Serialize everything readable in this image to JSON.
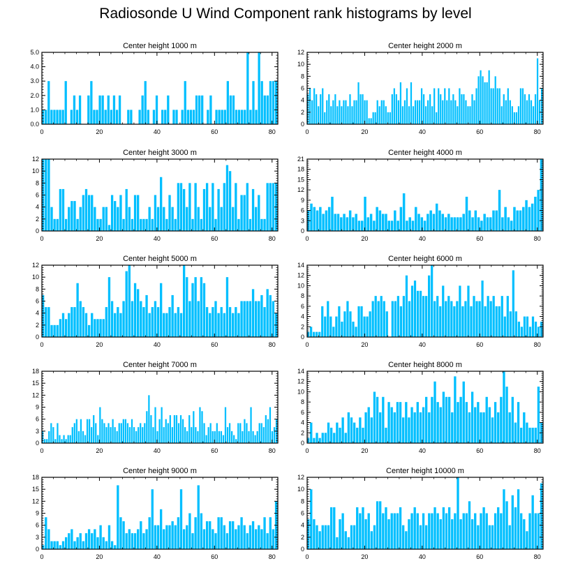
{
  "title": "Radiosonde U Wind Component rank histograms by level",
  "bar_color": "#00bfff",
  "chart_data": [
    {
      "type": "bar",
      "title": "Center height 1000 m",
      "xlim": [
        0,
        82
      ],
      "ylim": [
        0,
        5
      ],
      "xticks": [
        "0",
        "20",
        "40",
        "60",
        "80"
      ],
      "xtick_values": [
        0,
        20,
        40,
        60,
        80
      ],
      "yticks": [
        "0.0",
        "1.0",
        "2.0",
        "3.0",
        "4.0",
        "5.0"
      ],
      "ytick_values": [
        0,
        1,
        2,
        3,
        4,
        5
      ],
      "values": [
        1,
        1,
        3,
        1,
        1,
        1,
        1,
        1,
        3,
        0,
        1,
        2,
        1,
        2,
        0,
        0,
        2,
        3,
        1,
        1,
        2,
        2,
        1,
        2,
        1,
        2,
        1,
        2,
        0,
        0,
        1,
        1,
        0,
        0,
        1,
        2,
        3,
        1,
        0,
        1,
        2,
        0,
        1,
        1,
        2,
        0,
        1,
        1,
        0,
        1,
        3,
        1,
        1,
        1,
        2,
        2,
        2,
        0,
        1,
        2,
        0,
        1,
        1,
        1,
        1,
        3,
        2,
        2,
        1,
        1,
        1,
        1,
        5,
        1,
        3,
        1,
        5,
        3,
        2,
        2,
        3,
        3,
        3
      ]
    },
    {
      "type": "bar",
      "title": "Center height 2000 m",
      "xlim": [
        0,
        82
      ],
      "ylim": [
        0,
        12
      ],
      "xticks": [
        "0",
        "20",
        "40",
        "60",
        "80"
      ],
      "xtick_values": [
        0,
        20,
        40,
        60,
        80
      ],
      "yticks": [
        "0",
        "2",
        "4",
        "6",
        "8",
        "10",
        "12"
      ],
      "ytick_values": [
        0,
        2,
        4,
        6,
        8,
        10,
        12
      ],
      "values": [
        5,
        6,
        4,
        6,
        5,
        3,
        5,
        6,
        2,
        4,
        5,
        3,
        4,
        5,
        3,
        4,
        3,
        4,
        4,
        3,
        5,
        3,
        4,
        4,
        7,
        5,
        5,
        4,
        4,
        1,
        1,
        2,
        2,
        4,
        3,
        4,
        4,
        3,
        2,
        2,
        5,
        6,
        5,
        4,
        7,
        3,
        4,
        6,
        3,
        7,
        3,
        4,
        4,
        4,
        6,
        5,
        3,
        4,
        5,
        3,
        6,
        2,
        6,
        5,
        4,
        6,
        4,
        6,
        4,
        5,
        4,
        3,
        6,
        5,
        5,
        4,
        3,
        3,
        5,
        4,
        6,
        8,
        9,
        8,
        7,
        7,
        9,
        6,
        6,
        8,
        6,
        6,
        3,
        5,
        4,
        6,
        4,
        3,
        2,
        2,
        3,
        6,
        6,
        5,
        4,
        5,
        4,
        3,
        5,
        11,
        4,
        6
      ]
    },
    {
      "type": "bar",
      "title": "Center height 3000 m",
      "xlim": [
        0,
        82
      ],
      "ylim": [
        0,
        12
      ],
      "xticks": [
        "0",
        "20",
        "40",
        "60",
        "80"
      ],
      "xtick_values": [
        0,
        20,
        40,
        60,
        80
      ],
      "yticks": [
        "0",
        "2",
        "4",
        "6",
        "8",
        "10",
        "12"
      ],
      "ytick_values": [
        0,
        2,
        4,
        6,
        8,
        10,
        12
      ],
      "values": [
        12,
        12,
        12,
        4,
        2,
        2,
        7,
        7,
        2,
        4,
        5,
        5,
        2,
        4,
        6,
        7,
        6,
        6,
        4,
        2,
        2,
        4,
        4,
        1,
        6,
        5,
        4,
        6,
        2,
        7,
        4,
        2,
        6,
        6,
        2,
        2,
        2,
        4,
        2,
        6,
        4,
        9,
        4,
        2,
        6,
        4,
        2,
        8,
        8,
        7,
        4,
        8,
        2,
        8,
        4,
        2,
        7,
        8,
        4,
        8,
        2,
        7,
        4,
        8,
        11,
        10,
        4,
        8,
        2,
        6,
        6,
        8,
        2,
        7,
        4,
        6,
        2,
        2,
        8,
        8,
        8,
        8
      ]
    },
    {
      "type": "bar",
      "title": "Center height 4000 m",
      "xlim": [
        0,
        82
      ],
      "ylim": [
        0,
        21
      ],
      "xticks": [
        "0",
        "20",
        "40",
        "60",
        "80"
      ],
      "xtick_values": [
        0,
        20,
        40,
        60,
        80
      ],
      "yticks": [
        "0",
        "3",
        "6",
        "9",
        "12",
        "15",
        "18",
        "21"
      ],
      "ytick_values": [
        0,
        3,
        6,
        9,
        12,
        15,
        18,
        21
      ],
      "values": [
        6,
        8,
        7,
        6,
        7,
        5,
        6,
        7,
        10,
        5,
        5,
        4,
        5,
        4,
        6,
        4,
        5,
        3,
        3,
        10,
        4,
        5,
        3,
        7,
        6,
        5,
        5,
        3,
        3,
        6,
        3,
        7,
        11,
        3,
        4,
        3,
        7,
        5,
        4,
        3,
        5,
        6,
        5,
        8,
        6,
        5,
        4,
        5,
        4,
        4,
        4,
        4,
        5,
        10,
        6,
        4,
        6,
        4,
        3,
        5,
        4,
        4,
        6,
        6,
        12,
        4,
        7,
        4,
        3,
        7,
        6,
        6,
        7,
        9,
        7,
        8,
        10,
        12,
        21
      ]
    },
    {
      "type": "bar",
      "title": "Center height 5000 m",
      "xlim": [
        0,
        82
      ],
      "ylim": [
        0,
        12
      ],
      "xticks": [
        "0",
        "20",
        "40",
        "60",
        "80"
      ],
      "xtick_values": [
        0,
        20,
        40,
        60,
        80
      ],
      "yticks": [
        "0",
        "2",
        "4",
        "6",
        "8",
        "10",
        "12"
      ],
      "ytick_values": [
        0,
        2,
        4,
        6,
        8,
        10,
        12
      ],
      "values": [
        7,
        5,
        5,
        2,
        2,
        2,
        3,
        4,
        3,
        4,
        5,
        5,
        9,
        6,
        5,
        4,
        2,
        4,
        3,
        3,
        3,
        3,
        5,
        10,
        6,
        4,
        5,
        4,
        6,
        11,
        12,
        6,
        9,
        8,
        6,
        5,
        7,
        4,
        5,
        6,
        5,
        9,
        4,
        4,
        5,
        7,
        4,
        5,
        4,
        12,
        10,
        6,
        9,
        10,
        6,
        10,
        9,
        5,
        4,
        5,
        6,
        4,
        5,
        4,
        10,
        5,
        4,
        5,
        4,
        6,
        6,
        6,
        6,
        8,
        6,
        6,
        7,
        5,
        8,
        7,
        6,
        4
      ]
    },
    {
      "type": "bar",
      "title": "Center height 6000 m",
      "xlim": [
        0,
        82
      ],
      "ylim": [
        0,
        14
      ],
      "xticks": [
        "0",
        "20",
        "40",
        "60",
        "80"
      ],
      "xtick_values": [
        0,
        20,
        40,
        60,
        80
      ],
      "yticks": [
        "0",
        "2",
        "4",
        "6",
        "8",
        "10",
        "12",
        "14"
      ],
      "ytick_values": [
        0,
        2,
        4,
        6,
        8,
        10,
        12,
        14
      ],
      "values": [
        1,
        2,
        1,
        1,
        1,
        6,
        4,
        7,
        4,
        2,
        4,
        6,
        3,
        5,
        7,
        5,
        3,
        2,
        6,
        6,
        4,
        4,
        5,
        7,
        8,
        7,
        8,
        7,
        5,
        0,
        7,
        7,
        8,
        6,
        8,
        12,
        7,
        10,
        11,
        9,
        9,
        8,
        8,
        12,
        14,
        7,
        8,
        6,
        10,
        7,
        8,
        7,
        6,
        7,
        10,
        6,
        7,
        10,
        6,
        8,
        7,
        7,
        11,
        6,
        8,
        7,
        8,
        6,
        6,
        8,
        4,
        8,
        5,
        13,
        5,
        3,
        2,
        4,
        4,
        2,
        4,
        3,
        2,
        3
      ]
    },
    {
      "type": "bar",
      "title": "Center height 7000 m",
      "xlim": [
        0,
        82
      ],
      "ylim": [
        0,
        18
      ],
      "xticks": [
        "0",
        "20",
        "40",
        "60",
        "80"
      ],
      "xtick_values": [
        0,
        20,
        40,
        60,
        80
      ],
      "yticks": [
        "0",
        "3",
        "6",
        "9",
        "12",
        "15",
        "18"
      ],
      "ytick_values": [
        0,
        3,
        6,
        9,
        12,
        15,
        18
      ],
      "values": [
        3,
        1,
        1,
        3,
        5,
        4,
        1,
        5,
        2,
        1,
        2,
        1,
        2,
        2,
        4,
        5,
        6,
        3,
        6,
        3,
        2,
        6,
        6,
        4,
        7,
        5,
        2,
        9,
        6,
        5,
        4,
        5,
        4,
        6,
        4,
        3,
        5,
        5,
        6,
        6,
        5,
        4,
        6,
        4,
        3,
        4,
        5,
        4,
        5,
        8,
        12,
        7,
        4,
        9,
        3,
        6,
        9,
        4,
        6,
        5,
        7,
        4,
        7,
        7,
        5,
        7,
        6,
        4,
        3,
        7,
        4,
        8,
        4,
        3,
        9,
        8,
        5,
        2,
        4,
        5,
        3,
        3,
        5,
        3,
        3,
        2,
        9,
        4,
        5,
        3,
        2,
        1,
        5,
        5,
        3,
        6,
        5,
        3,
        9,
        3,
        2,
        3,
        5,
        5,
        4,
        7,
        6,
        9,
        3,
        4,
        6
      ]
    },
    {
      "type": "bar",
      "title": "Center height 8000 m",
      "xlim": [
        0,
        82
      ],
      "ylim": [
        0,
        14
      ],
      "xticks": [
        "0",
        "20",
        "40",
        "60",
        "80"
      ],
      "xtick_values": [
        0,
        20,
        40,
        60,
        80
      ],
      "yticks": [
        "0",
        "2",
        "4",
        "6",
        "8",
        "10",
        "12",
        "14"
      ],
      "ytick_values": [
        0,
        2,
        4,
        6,
        8,
        10,
        12,
        14
      ],
      "values": [
        1,
        4,
        1,
        2,
        1,
        2,
        2,
        4,
        3,
        2,
        4,
        3,
        5,
        2,
        6,
        5,
        4,
        3,
        5,
        3,
        6,
        7,
        5,
        10,
        9,
        6,
        9,
        3,
        8,
        7,
        6,
        8,
        8,
        5,
        8,
        5,
        7,
        6,
        8,
        6,
        7,
        9,
        6,
        9,
        12,
        8,
        7,
        10,
        9,
        9,
        6,
        13,
        8,
        9,
        12,
        8,
        6,
        10,
        7,
        8,
        6,
        6,
        9,
        7,
        5,
        8,
        6,
        9,
        14,
        11,
        6,
        9,
        4,
        8,
        3,
        6,
        4,
        3,
        3,
        3,
        11,
        4
      ]
    },
    {
      "type": "bar",
      "title": "Center height 9000 m",
      "xlim": [
        0,
        82
      ],
      "ylim": [
        0,
        18
      ],
      "xticks": [
        "0",
        "20",
        "40",
        "60",
        "80"
      ],
      "xtick_values": [
        0,
        20,
        40,
        60,
        80
      ],
      "yticks": [
        "0",
        "3",
        "6",
        "9",
        "12",
        "15",
        "18"
      ],
      "ytick_values": [
        0,
        3,
        6,
        9,
        12,
        15,
        18
      ],
      "values": [
        1,
        8,
        5,
        2,
        2,
        2,
        1,
        2,
        3,
        4,
        5,
        2,
        3,
        4,
        2,
        4,
        5,
        4,
        5,
        3,
        6,
        3,
        2,
        6,
        2,
        1,
        16,
        8,
        7,
        4,
        5,
        4,
        4,
        5,
        7,
        4,
        5,
        8,
        15,
        6,
        6,
        10,
        5,
        6,
        6,
        7,
        6,
        8,
        15,
        5,
        6,
        9,
        4,
        8,
        16,
        9,
        5,
        7,
        7,
        5,
        4,
        8,
        8,
        6,
        4,
        7,
        7,
        5,
        6,
        8,
        6,
        4,
        6,
        7,
        5,
        6,
        5,
        8,
        4,
        8,
        5,
        12
      ]
    },
    {
      "type": "bar",
      "title": "Center height 10000 m",
      "xlim": [
        0,
        82
      ],
      "ylim": [
        0,
        12
      ],
      "xticks": [
        "0",
        "20",
        "40",
        "60",
        "80"
      ],
      "xtick_values": [
        0,
        20,
        40,
        60,
        80
      ],
      "yticks": [
        "0",
        "2",
        "4",
        "6",
        "8",
        "10",
        "12"
      ],
      "ytick_values": [
        0,
        2,
        4,
        6,
        8,
        10,
        12
      ],
      "values": [
        5,
        10,
        5,
        4,
        3,
        4,
        4,
        4,
        7,
        7,
        2,
        5,
        6,
        3,
        2,
        4,
        4,
        7,
        6,
        7,
        5,
        6,
        3,
        4,
        8,
        8,
        6,
        7,
        5,
        6,
        6,
        6,
        7,
        4,
        3,
        5,
        6,
        7,
        6,
        4,
        6,
        4,
        6,
        6,
        7,
        6,
        5,
        7,
        6,
        7,
        5,
        6,
        12,
        5,
        6,
        6,
        8,
        5,
        6,
        4,
        6,
        7,
        6,
        4,
        4,
        6,
        7,
        6,
        10,
        8,
        4,
        9,
        7,
        10,
        6,
        5,
        3,
        6,
        9,
        6,
        6,
        11
      ]
    }
  ]
}
